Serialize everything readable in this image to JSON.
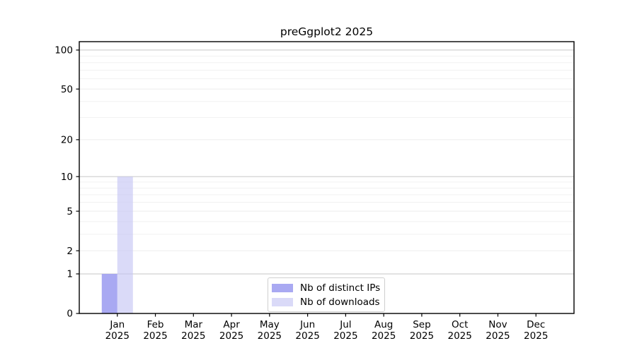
{
  "figure": {
    "background": "#ffffff"
  },
  "chart_data": {
    "type": "bar",
    "title": "preGgplot2 2025",
    "x_categories": [
      "Jan",
      "Feb",
      "Mar",
      "Apr",
      "May",
      "Jun",
      "Jul",
      "Aug",
      "Sep",
      "Oct",
      "Nov",
      "Dec"
    ],
    "x_year_label": "2025",
    "series": [
      {
        "name": "Nb of distinct IPs",
        "color": "#9a9af0",
        "fill_opacity": 0.85,
        "apparent_color": "#a9a9f2",
        "values": [
          1,
          0,
          0,
          0,
          0,
          0,
          0,
          0,
          0,
          0,
          0,
          0
        ]
      },
      {
        "name": "Nb of downloads",
        "color": "#c3c3f4",
        "fill_opacity": 0.62,
        "apparent_color": "#d9d9f8",
        "values": [
          10,
          0,
          0,
          0,
          0,
          0,
          0,
          0,
          0,
          0,
          0,
          0
        ]
      }
    ],
    "y_scale": "log1p",
    "y_ticks": [
      0,
      1,
      2,
      5,
      10,
      20,
      50,
      100
    ],
    "ylim": [
      0,
      116
    ],
    "grid": {
      "orientation": "horizontal",
      "major_lines": [
        1,
        10,
        100
      ],
      "major_color": "#c6c6c6",
      "medium_lines": [
        2,
        5,
        20,
        50
      ],
      "medium_color": "#ececec",
      "minor_lines": [
        3,
        4,
        6,
        7,
        8,
        9,
        30,
        40,
        60,
        70,
        80,
        90
      ],
      "minor_color": "#f1f1f1"
    },
    "axis_color": "#000000",
    "legend_position": "bottom-center-inside"
  }
}
